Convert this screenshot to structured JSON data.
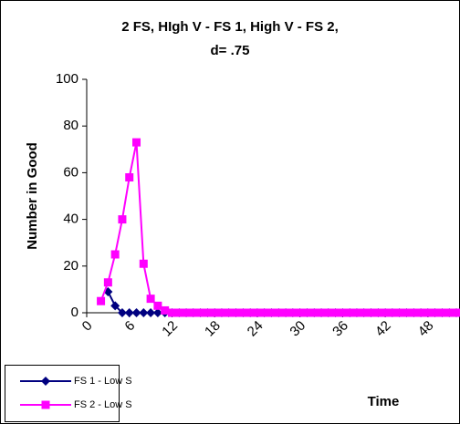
{
  "chart_data": {
    "type": "line",
    "title": [
      "2 FS, HIgh V - FS 1, High V - FS 2,",
      "d= .75"
    ],
    "xlabel": "Time",
    "ylabel": "Number in Good",
    "x": [
      2,
      3,
      4,
      5,
      6,
      7,
      8,
      9,
      10,
      11,
      12,
      13,
      14,
      15,
      16,
      17,
      18,
      19,
      20,
      21,
      22,
      23,
      24,
      25,
      26,
      27,
      28,
      29,
      30,
      31,
      32,
      33,
      34,
      35,
      36,
      37,
      38,
      39,
      40,
      41,
      42,
      43,
      44,
      45,
      46,
      47,
      48,
      49,
      50,
      51,
      52
    ],
    "xlim": [
      0,
      52
    ],
    "xticks": [
      0,
      6,
      12,
      18,
      24,
      30,
      36,
      42,
      48
    ],
    "ylim": [
      0,
      100
    ],
    "yticks": [
      0,
      20,
      40,
      60,
      80,
      100
    ],
    "series": [
      {
        "name": "FS 1 - Low S",
        "color": "#000080",
        "marker": "diamond",
        "values": [
          null,
          9,
          3,
          0,
          0,
          0,
          0,
          0,
          0,
          0,
          0,
          0,
          0,
          0,
          0,
          0,
          0,
          0,
          0,
          0,
          0,
          0,
          0,
          0,
          0,
          0,
          0,
          0,
          0,
          0,
          0,
          0,
          0,
          0,
          0,
          0,
          0,
          0,
          0,
          0,
          0,
          0,
          0,
          0,
          0,
          0,
          0,
          0,
          0,
          0,
          0
        ]
      },
      {
        "name": "FS 2 - Low S",
        "color": "#ff00ff",
        "marker": "square",
        "values": [
          5,
          13,
          25,
          40,
          58,
          73,
          21,
          6,
          3,
          1,
          0,
          0,
          0,
          0,
          0,
          0,
          0,
          0,
          0,
          0,
          0,
          0,
          0,
          0,
          0,
          0,
          0,
          0,
          0,
          0,
          0,
          0,
          0,
          0,
          0,
          0,
          0,
          0,
          0,
          0,
          0,
          0,
          0,
          0,
          0,
          0,
          0,
          0,
          0,
          0,
          0
        ]
      }
    ],
    "legend": "bottom-left"
  }
}
